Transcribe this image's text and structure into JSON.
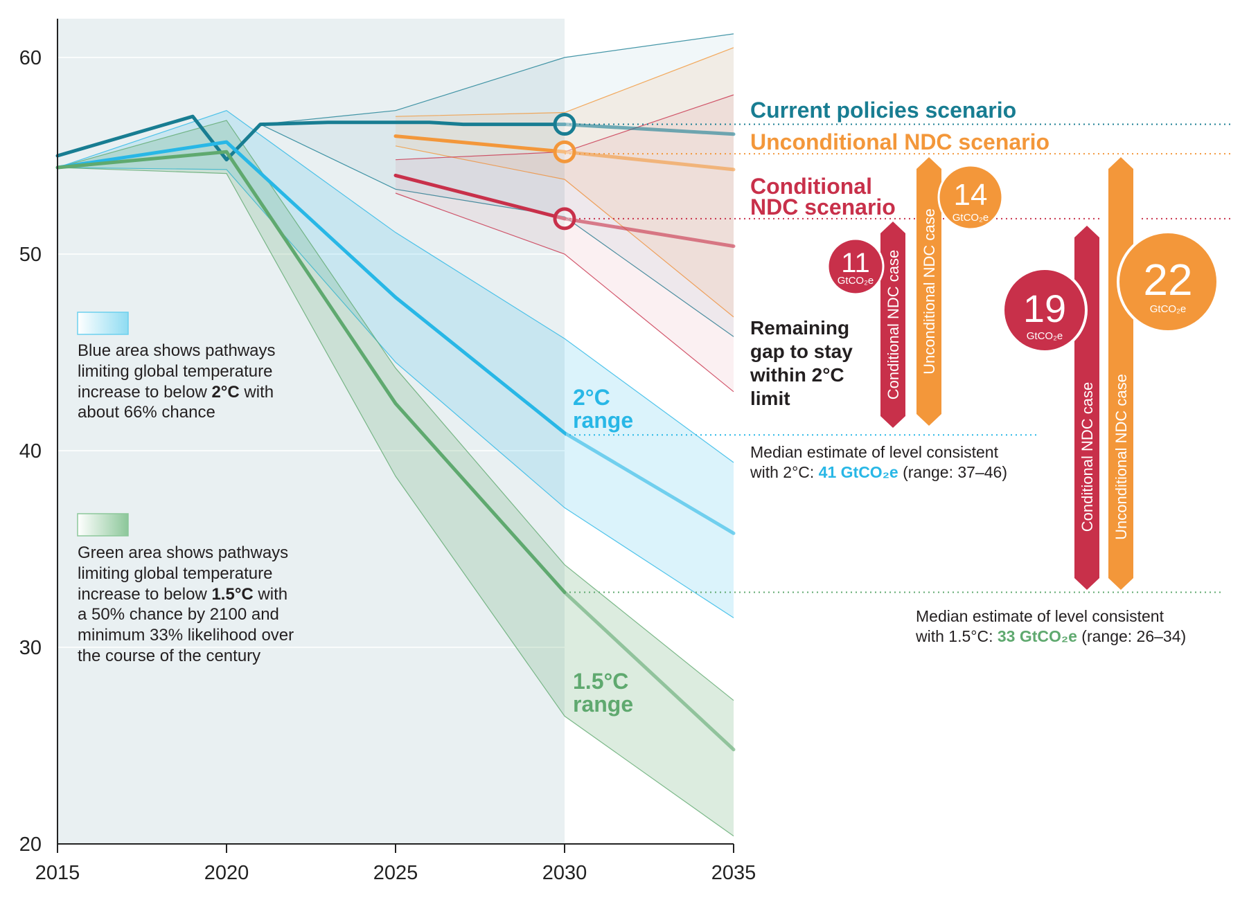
{
  "chart_data": {
    "type": "line",
    "title": "",
    "xlabel": "",
    "ylabel": "",
    "xlim": [
      2015,
      2035
    ],
    "ylim": [
      20,
      62
    ],
    "grid": "horizontal",
    "x_ticks": [
      "2015",
      "2020",
      "2025",
      "2030",
      "2035"
    ],
    "y_ticks": [
      "20",
      "30",
      "40",
      "50",
      "60"
    ],
    "colors": {
      "current": "#187d92",
      "uncond": "#f3973a",
      "cond": "#c8304a",
      "two": "#28b7e6",
      "onefive": "#5fa96f",
      "shade": "#e9f0f2",
      "grid": "#ffffff",
      "axis": "#222222",
      "note_text": "#231f20"
    },
    "series": [
      {
        "name": "Current policies scenario",
        "key": "current",
        "points": [
          [
            2015,
            55.0
          ],
          [
            2019,
            57.0
          ],
          [
            2020,
            54.8
          ],
          [
            2021,
            56.6
          ],
          [
            2023,
            56.7
          ],
          [
            2026,
            56.7
          ],
          [
            2027,
            56.6
          ],
          [
            2030,
            56.6
          ]
        ],
        "projection": [
          [
            2030,
            56.6
          ],
          [
            2035,
            56.1
          ]
        ]
      },
      {
        "name": "Unconditional NDC scenario",
        "key": "uncond",
        "points": [
          [
            2025,
            56.0
          ],
          [
            2030,
            55.2
          ]
        ],
        "projection": [
          [
            2030,
            55.2
          ],
          [
            2035,
            54.3
          ]
        ]
      },
      {
        "name": "Conditional NDC scenario",
        "key": "cond",
        "points": [
          [
            2025,
            54.0
          ],
          [
            2030,
            51.8
          ]
        ],
        "projection": [
          [
            2030,
            51.8
          ],
          [
            2035,
            50.4
          ]
        ]
      },
      {
        "name": "2°C range",
        "key": "two",
        "points": [
          [
            2015,
            54.4
          ],
          [
            2020,
            55.7
          ],
          [
            2025,
            47.8
          ],
          [
            2030,
            40.9
          ]
        ],
        "projection": [
          [
            2030,
            40.9
          ],
          [
            2035,
            35.8
          ]
        ]
      },
      {
        "name": "1.5°C range",
        "key": "onefive",
        "points": [
          [
            2015,
            54.4
          ],
          [
            2020,
            55.2
          ],
          [
            2025,
            42.4
          ],
          [
            2030,
            32.8
          ]
        ],
        "projection": [
          [
            2030,
            32.8
          ],
          [
            2035,
            24.8
          ]
        ]
      }
    ],
    "bands": [
      {
        "key": "current",
        "upper": [
          [
            2021,
            56.6
          ],
          [
            2025,
            57.3
          ],
          [
            2030,
            60.0
          ],
          [
            2035,
            61.2
          ]
        ],
        "lower": [
          [
            2021,
            56.6
          ],
          [
            2025,
            53.3
          ],
          [
            2030,
            51.9
          ],
          [
            2035,
            45.8
          ]
        ]
      },
      {
        "key": "uncond",
        "upper": [
          [
            2025,
            57.0
          ],
          [
            2030,
            57.2
          ],
          [
            2035,
            60.5
          ]
        ],
        "lower": [
          [
            2025,
            55.5
          ],
          [
            2030,
            53.8
          ],
          [
            2035,
            46.8
          ]
        ]
      },
      {
        "key": "cond",
        "upper": [
          [
            2025,
            54.8
          ],
          [
            2030,
            55.2
          ],
          [
            2035,
            58.1
          ]
        ],
        "lower": [
          [
            2025,
            53.1
          ],
          [
            2030,
            50.0
          ],
          [
            2035,
            43.0
          ]
        ]
      },
      {
        "key": "two",
        "upper": [
          [
            2015,
            54.4
          ],
          [
            2020,
            57.3
          ],
          [
            2025,
            51.1
          ],
          [
            2030,
            45.7
          ],
          [
            2035,
            39.4
          ]
        ],
        "lower": [
          [
            2015,
            54.4
          ],
          [
            2020,
            54.3
          ],
          [
            2025,
            44.5
          ],
          [
            2030,
            37.1
          ],
          [
            2035,
            31.5
          ]
        ]
      },
      {
        "key": "onefive",
        "upper": [
          [
            2015,
            54.4
          ],
          [
            2020,
            56.8
          ],
          [
            2025,
            44.2
          ],
          [
            2030,
            34.2
          ],
          [
            2035,
            27.3
          ]
        ],
        "lower": [
          [
            2015,
            54.4
          ],
          [
            2020,
            54.1
          ],
          [
            2025,
            38.7
          ],
          [
            2030,
            26.5
          ],
          [
            2035,
            20.4
          ]
        ]
      }
    ],
    "markers": [
      {
        "key": "current",
        "x": 2030,
        "y": 56.6
      },
      {
        "key": "uncond",
        "x": 2030,
        "y": 55.2
      },
      {
        "key": "cond",
        "x": 2030,
        "y": 51.8
      }
    ],
    "reference_lines": [
      {
        "key": "current",
        "y": 56.6
      },
      {
        "key": "uncond",
        "y": 55.1
      },
      {
        "key": "cond",
        "y": 51.8
      },
      {
        "key": "two",
        "y": 40.8
      },
      {
        "key": "onefive",
        "y": 32.8
      }
    ],
    "historical_shading": [
      2015,
      2030
    ],
    "gaps": [
      {
        "case": "conditional",
        "target": "2°C",
        "value": 11,
        "from": 51.8,
        "to": 40.9
      },
      {
        "case": "unconditional",
        "target": "2°C",
        "value": 14,
        "from": 55.2,
        "to": 40.9
      },
      {
        "case": "conditional",
        "target": "1.5°C",
        "value": 19,
        "from": 51.8,
        "to": 32.8
      },
      {
        "case": "unconditional",
        "target": "1.5°C",
        "value": 22,
        "from": 55.2,
        "to": 32.8
      }
    ]
  },
  "labels": {
    "current": "Current policies scenario",
    "uncond": "Unconditional NDC scenario",
    "cond_line1": "Conditional",
    "cond_line2": "NDC scenario",
    "two_line1": "2°C",
    "two_line2": "range",
    "onefive_line1": "1.5°C",
    "onefive_line2": "range",
    "gap_title": [
      "Remaining",
      "gap to stay",
      "within 2°C",
      "limit"
    ],
    "cond_case": "Conditional NDC case",
    "uncond_case": "Unconditional NDC case",
    "gap_unit": "GtCO₂e",
    "gap_values": [
      "11",
      "14",
      "19",
      "22"
    ]
  },
  "legend": {
    "blue_note": [
      "Blue area shows pathways",
      "limiting global temperature",
      "increase to below ",
      "2°C",
      " with",
      "about 66% chance"
    ],
    "green_note": [
      "Green area shows pathways",
      "limiting global temperature",
      "increase to below ",
      "1.5°C",
      " with",
      "a 50% chance by 2100 and",
      "minimum 33% likelihood over",
      "the course of the century"
    ]
  },
  "medians": {
    "two": {
      "line1": "Median estimate of level consistent",
      "prefix": "with 2°C: ",
      "value": "41 GtCO₂e",
      "suffix": " (range: 37–46)"
    },
    "onefive": {
      "line1": "Median estimate of level consistent",
      "prefix": "with 1.5°C: ",
      "value": "33 GtCO₂e",
      "suffix": " (range: 26–34)"
    }
  }
}
